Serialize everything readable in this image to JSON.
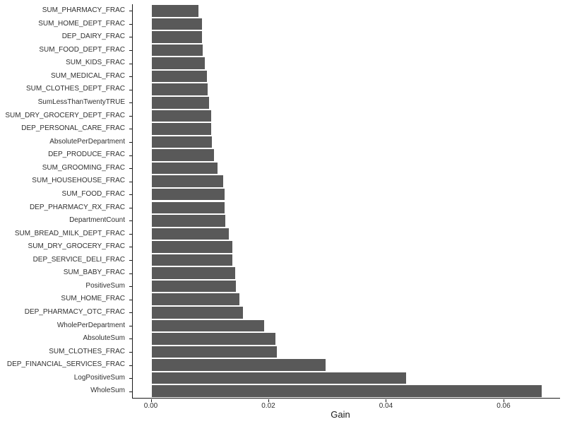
{
  "chart_data": {
    "type": "bar",
    "orientation": "horizontal",
    "title": "",
    "xlabel": "Gain",
    "ylabel": "",
    "grid": false,
    "legend": false,
    "bar_color": "#595959",
    "axis_color": "#1a1a1a",
    "text_color": "#303030",
    "xlim": [
      0,
      0.0695
    ],
    "xticks": [
      {
        "value": 0.0,
        "label": "0.00"
      },
      {
        "value": 0.02,
        "label": "0.02"
      },
      {
        "value": 0.04,
        "label": "0.04"
      },
      {
        "value": 0.06,
        "label": "0.06"
      }
    ],
    "categories": [
      "SUM_PHARMACY_FRAC",
      "SUM_HOME_DEPT_FRAC",
      "DEP_DAIRY_FRAC",
      "SUM_FOOD_DEPT_FRAC",
      "SUM_KIDS_FRAC",
      "SUM_MEDICAL_FRAC",
      "SUM_CLOTHES_DEPT_FRAC",
      "SumLessThanTwentyTRUE",
      "SUM_DRY_GROCERY_DEPT_FRAC",
      "DEP_PERSONAL_CARE_FRAC",
      "AbsolutePerDepartment",
      "DEP_PRODUCE_FRAC",
      "SUM_GROOMING_FRAC",
      "SUM_HOUSEHOUSE_FRAC",
      "SUM_FOOD_FRAC",
      "DEP_PHARMACY_RX_FRAC",
      "DepartmentCount",
      "SUM_BREAD_MILK_DEPT_FRAC",
      "SUM_DRY_GROCERY_FRAC",
      "DEP_SERVICE_DELI_FRAC",
      "SUM_BABY_FRAC",
      "PositiveSum",
      "SUM_HOME_FRAC",
      "DEP_PHARMACY_OTC_FRAC",
      "WholePerDepartment",
      "AbsoluteSum",
      "SUM_CLOTHES_FRAC",
      "DEP_FINANCIAL_SERVICES_FRAC",
      "LogPositiveSum",
      "WholeSum"
    ],
    "values": [
      0.008,
      0.0086,
      0.0086,
      0.0087,
      0.0091,
      0.0094,
      0.0095,
      0.0098,
      0.0101,
      0.0102,
      0.0103,
      0.0106,
      0.0112,
      0.0122,
      0.0124,
      0.0124,
      0.0125,
      0.0131,
      0.0137,
      0.0138,
      0.0142,
      0.0143,
      0.0149,
      0.0155,
      0.0192,
      0.0211,
      0.0213,
      0.0296,
      0.0433,
      0.0664
    ]
  }
}
